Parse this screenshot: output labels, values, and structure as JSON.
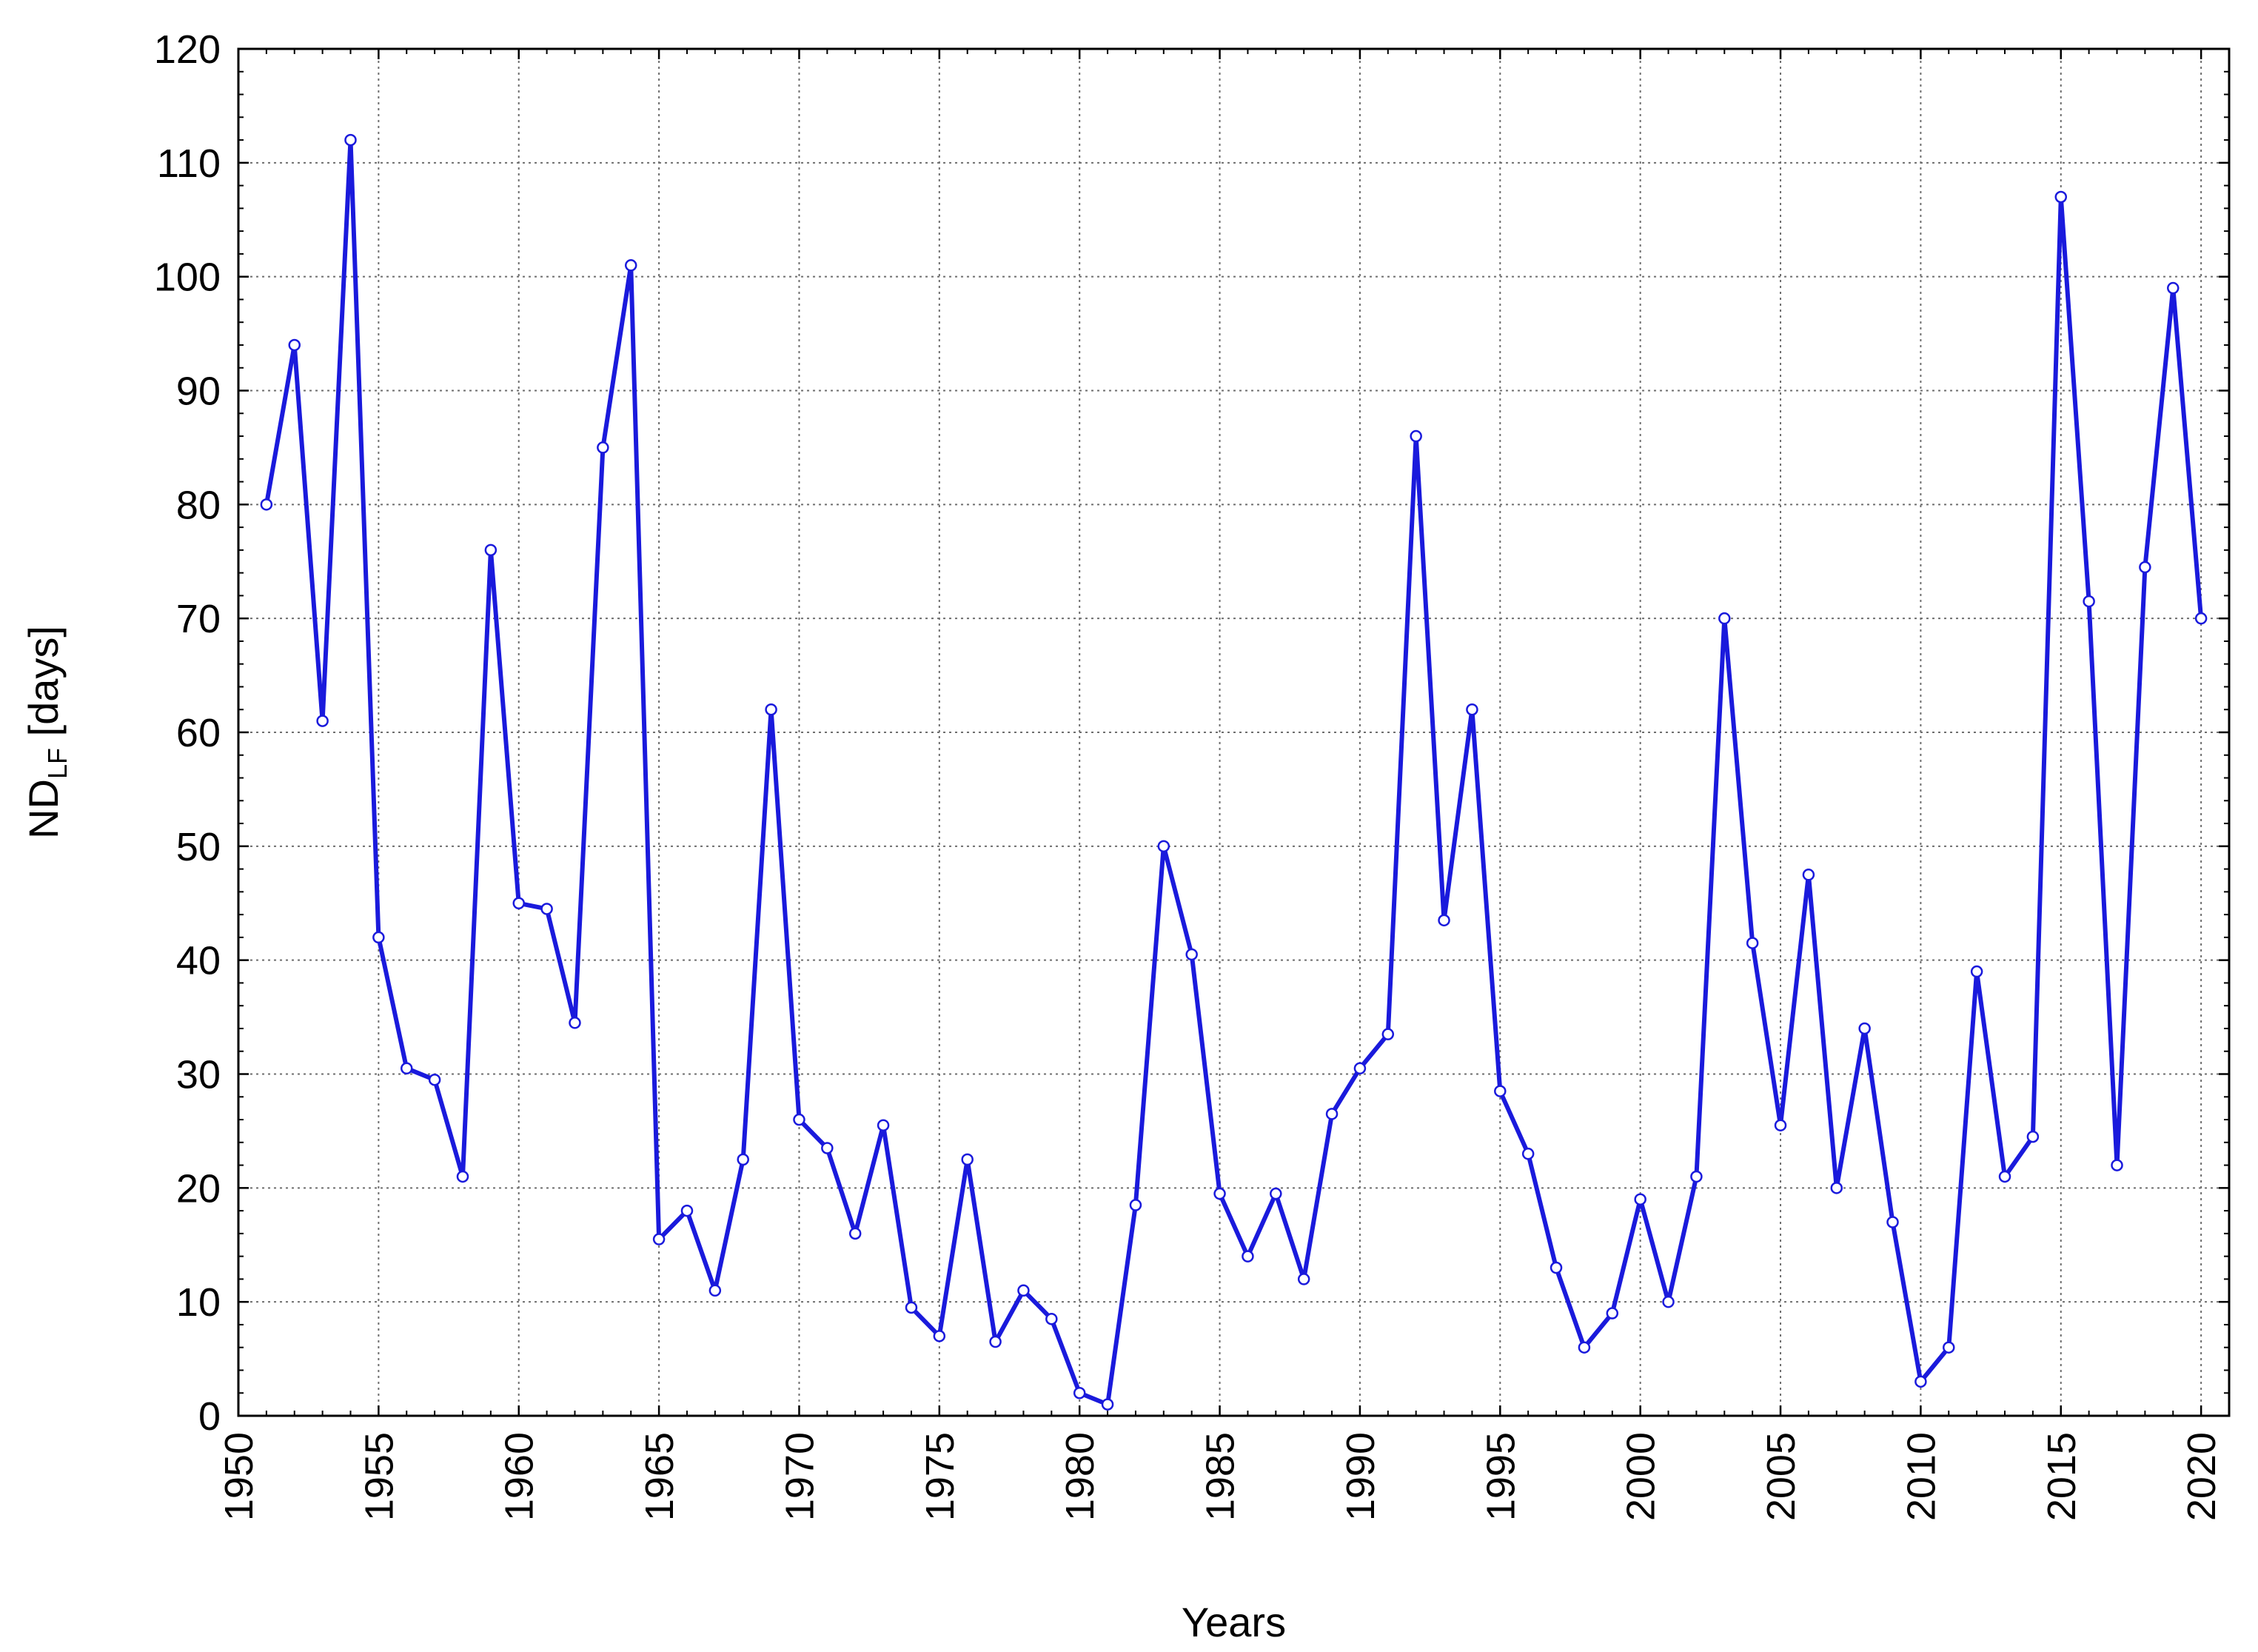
{
  "chart_data": {
    "type": "line",
    "title": "",
    "xlabel": "Years",
    "ylabel": {
      "main": "ND",
      "sub": "LF",
      "unit": " [days]"
    },
    "xlim": [
      1950,
      2021
    ],
    "ylim": [
      0,
      120
    ],
    "xticks": [
      1950,
      1955,
      1960,
      1965,
      1970,
      1975,
      1980,
      1985,
      1990,
      1995,
      2000,
      2005,
      2010,
      2015,
      2020
    ],
    "yticks": [
      0,
      10,
      20,
      30,
      40,
      50,
      60,
      70,
      80,
      90,
      100,
      110,
      120
    ],
    "grid": true,
    "legend": "none",
    "colors": {
      "series": "#1a1adc",
      "grid": "#6e6e6e",
      "frame": "#000000",
      "marker_fill": "#ffffff"
    },
    "series": [
      {
        "x": [
          1951,
          1952,
          1953,
          1954,
          1955,
          1956,
          1957,
          1958,
          1959,
          1960,
          1961,
          1962,
          1963,
          1964,
          1965,
          1966,
          1967,
          1968,
          1969,
          1970,
          1971,
          1972,
          1973,
          1974,
          1975,
          1976,
          1977,
          1978,
          1979,
          1980,
          1981,
          1982,
          1983,
          1984,
          1985,
          1986,
          1987,
          1988,
          1989,
          1990,
          1991,
          1992,
          1993,
          1994,
          1995,
          1996,
          1997,
          1998,
          1999,
          2000,
          2001,
          2002,
          2003,
          2004,
          2005,
          2006,
          2007,
          2008,
          2009,
          2010,
          2011,
          2012,
          2013,
          2014,
          2015,
          2016,
          2017,
          2018,
          2019,
          2020
        ],
        "values": [
          80,
          94,
          61,
          112,
          42,
          30.5,
          29.5,
          21,
          76,
          45,
          44.5,
          34.5,
          85,
          101,
          15.5,
          18,
          11,
          22.5,
          62,
          26,
          23.5,
          16,
          25.5,
          9.5,
          7,
          22.5,
          6.5,
          11,
          8.5,
          2,
          1,
          18.5,
          50,
          40.5,
          19.5,
          14,
          19.5,
          12,
          26.5,
          30.5,
          33.5,
          86,
          43.5,
          62,
          28.5,
          23,
          13,
          6,
          9,
          19,
          10,
          21,
          70,
          41.5,
          25.5,
          47.5,
          20,
          34,
          17,
          3,
          6,
          39,
          21,
          24.5,
          107,
          71.5,
          22,
          74.5,
          99,
          70
        ]
      }
    ]
  }
}
